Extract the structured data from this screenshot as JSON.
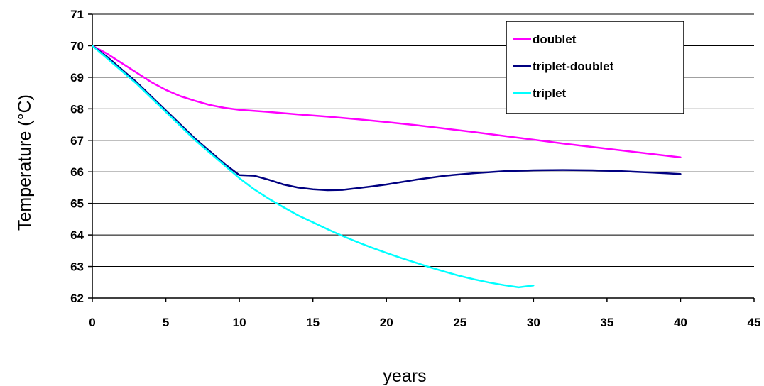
{
  "chart_data": {
    "type": "line",
    "xlabel": "years",
    "ylabel": "Temperature (°C)",
    "xlim": [
      0,
      45
    ],
    "ylim": [
      62,
      71
    ],
    "xticks": [
      "0",
      "5",
      "10",
      "15",
      "20",
      "25",
      "30",
      "35",
      "40",
      "45"
    ],
    "yticks": [
      "62",
      "63",
      "64",
      "65",
      "66",
      "67",
      "68",
      "69",
      "70",
      "71"
    ],
    "grid": "horizontal",
    "legend_position": "top-right",
    "series": [
      {
        "name": "doublet",
        "color": "#ff00ff",
        "x": [
          0,
          1,
          2,
          3,
          4,
          5,
          6,
          7,
          8,
          9,
          10,
          12,
          14,
          16,
          18,
          20,
          22,
          24,
          26,
          28,
          30,
          32,
          34,
          36,
          38,
          40
        ],
        "y": [
          70.0,
          69.75,
          69.45,
          69.15,
          68.85,
          68.6,
          68.4,
          68.25,
          68.12,
          68.03,
          67.97,
          67.9,
          67.82,
          67.75,
          67.67,
          67.58,
          67.48,
          67.37,
          67.26,
          67.14,
          67.02,
          66.9,
          66.79,
          66.68,
          66.57,
          66.46
        ]
      },
      {
        "name": "triplet-doublet",
        "color": "#000080",
        "x": [
          0,
          1,
          2,
          3,
          4,
          5,
          6,
          7,
          8,
          9,
          10,
          11,
          12,
          13,
          14,
          15,
          16,
          17,
          18,
          19,
          20,
          22,
          24,
          26,
          28,
          30,
          32,
          34,
          36,
          38,
          40
        ],
        "y": [
          70.0,
          69.65,
          69.25,
          68.85,
          68.4,
          67.95,
          67.5,
          67.05,
          66.65,
          66.25,
          65.9,
          65.88,
          65.75,
          65.6,
          65.5,
          65.45,
          65.42,
          65.43,
          65.48,
          65.54,
          65.6,
          65.75,
          65.88,
          65.96,
          66.02,
          66.05,
          66.06,
          66.05,
          66.02,
          65.98,
          65.93
        ]
      },
      {
        "name": "triplet",
        "color": "#00ffff",
        "x": [
          0,
          1,
          2,
          3,
          4,
          5,
          6,
          7,
          8,
          9,
          10,
          11,
          12,
          13,
          14,
          15,
          16,
          17,
          18,
          19,
          20,
          21,
          22,
          23,
          24,
          25,
          26,
          27,
          28,
          29,
          30
        ],
        "y": [
          70.0,
          69.6,
          69.2,
          68.8,
          68.35,
          67.9,
          67.45,
          67.0,
          66.6,
          66.2,
          65.8,
          65.45,
          65.15,
          64.88,
          64.62,
          64.4,
          64.18,
          63.97,
          63.78,
          63.6,
          63.43,
          63.27,
          63.12,
          62.97,
          62.83,
          62.7,
          62.59,
          62.49,
          62.41,
          62.34,
          62.4
        ]
      }
    ]
  }
}
